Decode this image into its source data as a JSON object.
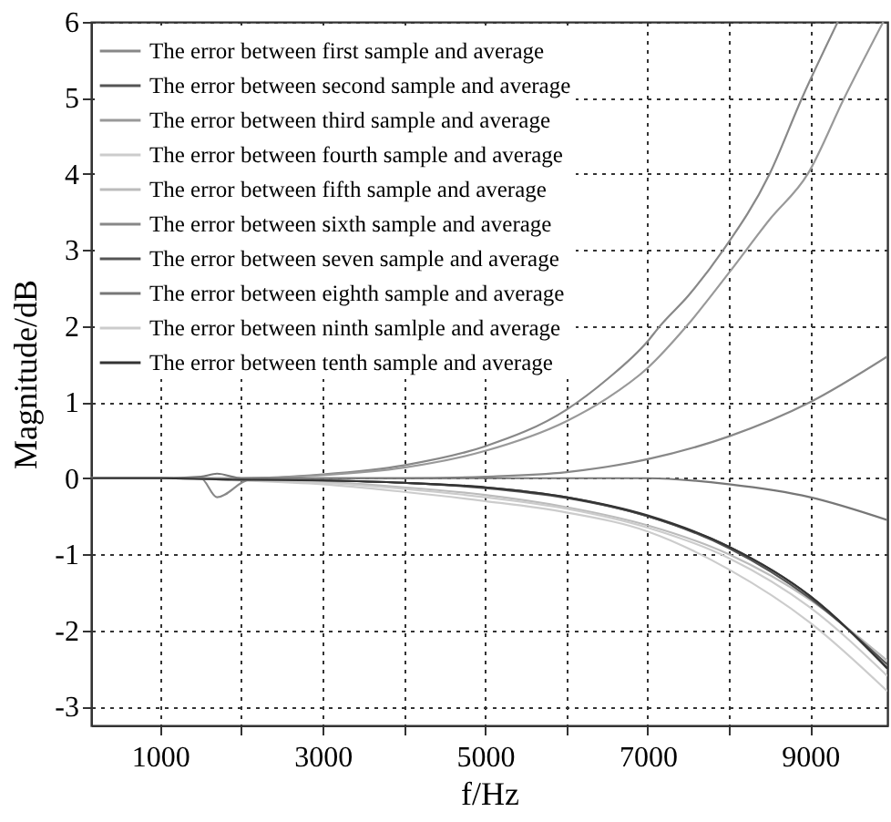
{
  "chart_data": {
    "type": "line",
    "xlabel": "f/Hz",
    "ylabel": "Magnitude/dB",
    "xlim": [
      150,
      9950
    ],
    "ylim": [
      -3.25,
      6
    ],
    "xticks": [
      1000,
      {
        "value": 2000,
        "label": null
      },
      3000,
      {
        "value": 4000,
        "label": null
      },
      5000,
      {
        "value": 6000,
        "label": null
      },
      7000,
      {
        "value": 8000,
        "label": null
      },
      9000
    ],
    "yticks": [
      -3,
      -2,
      -1,
      0,
      1,
      2,
      3,
      4,
      5,
      6
    ],
    "grid": true,
    "legend": "top left",
    "line_style": "solid",
    "series": [
      {
        "name": "The error between first sample and average",
        "color": "#888888",
        "x": [
          150,
          1000,
          2000,
          3000,
          4000,
          5000,
          6000,
          6500,
          7000,
          7150,
          7500,
          7930,
          8500,
          8900,
          9340
        ],
        "values": [
          0,
          0,
          0,
          0.05,
          0.17,
          0.42,
          0.9,
          1.3,
          1.8,
          2,
          2.4,
          3,
          4,
          5,
          6
        ]
      },
      {
        "name": "The error between second sample and average",
        "color": "#555555",
        "x": [
          150,
          1000,
          2000,
          3000,
          4000,
          5000,
          6000,
          7000,
          8000,
          9000,
          9950
        ],
        "values": [
          0,
          0,
          -0.02,
          -0.03,
          -0.06,
          -0.12,
          -0.25,
          -0.5,
          -0.9,
          -1.55,
          -2.5
        ]
      },
      {
        "name": "The error between third sample and average",
        "color": "#999999",
        "x": [
          150,
          1000,
          2000,
          3000,
          4000,
          5000,
          6000,
          6500,
          7000,
          7480,
          8000,
          8500,
          8970,
          9420,
          9900
        ],
        "values": [
          0,
          0,
          0,
          0.04,
          0.14,
          0.36,
          0.75,
          1.05,
          1.45,
          2,
          2.7,
          3.4,
          4,
          5,
          6
        ]
      },
      {
        "name": "The error between fourth sample and average",
        "color": "#cccccc",
        "x": [
          150,
          1000,
          2000,
          3000,
          4000,
          5000,
          6000,
          7000,
          8000,
          9000,
          9950
        ],
        "values": [
          0,
          0,
          -0.03,
          -0.08,
          -0.18,
          -0.3,
          -0.45,
          -0.7,
          -1.2,
          -1.9,
          -2.8
        ]
      },
      {
        "name": "The error between fifth sample and average",
        "color": "#bbbbbb",
        "x": [
          150,
          1000,
          2000,
          3000,
          4000,
          5000,
          6000,
          7000,
          8000,
          9000,
          9950
        ],
        "values": [
          0,
          0,
          -0.02,
          -0.05,
          -0.12,
          -0.22,
          -0.38,
          -0.62,
          -1.0,
          -1.6,
          -2.4
        ]
      },
      {
        "name": "The error between sixth sample and average",
        "color": "#888888",
        "x": [
          150,
          1000,
          1500,
          1700,
          2100,
          3000,
          4000,
          5000,
          6000,
          7000,
          8000,
          9000,
          9950
        ],
        "values": [
          0,
          0,
          0,
          -0.25,
          -0.02,
          0,
          0,
          0.02,
          0.08,
          0.25,
          0.55,
          1.0,
          1.6
        ]
      },
      {
        "name": "The error between seven sample and average",
        "color": "#555555",
        "x": [
          150,
          1000,
          2000,
          3000,
          4000,
          5000,
          6000,
          7000,
          8000,
          9000,
          9950
        ],
        "values": [
          0,
          0,
          -0.02,
          -0.03,
          -0.06,
          -0.13,
          -0.26,
          -0.5,
          -0.92,
          -1.58,
          -2.45
        ]
      },
      {
        "name": "The error between eighth sample and average",
        "color": "#777777",
        "x": [
          150,
          1000,
          1500,
          1700,
          2000,
          3000,
          5000,
          7000,
          8000,
          9000,
          9950
        ],
        "values": [
          0,
          0,
          0.02,
          0.06,
          0,
          0,
          0,
          0,
          -0.08,
          -0.25,
          -0.55
        ]
      },
      {
        "name": "The error between ninth samlple and average",
        "color": "#cccccc",
        "x": [
          150,
          1000,
          2000,
          3000,
          4000,
          5000,
          6000,
          7000,
          8000,
          9000,
          9950
        ],
        "values": [
          0,
          0,
          -0.02,
          -0.06,
          -0.14,
          -0.25,
          -0.4,
          -0.65,
          -1.05,
          -1.7,
          -2.6
        ]
      },
      {
        "name": "The error between tenth sample and average",
        "color": "#333333",
        "x": [
          150,
          1000,
          2000,
          3000,
          4000,
          5000,
          6000,
          7000,
          8000,
          9000,
          9950
        ],
        "values": [
          0,
          0,
          -0.02,
          -0.03,
          -0.06,
          -0.12,
          -0.25,
          -0.49,
          -0.9,
          -1.55,
          -2.5
        ]
      }
    ]
  }
}
